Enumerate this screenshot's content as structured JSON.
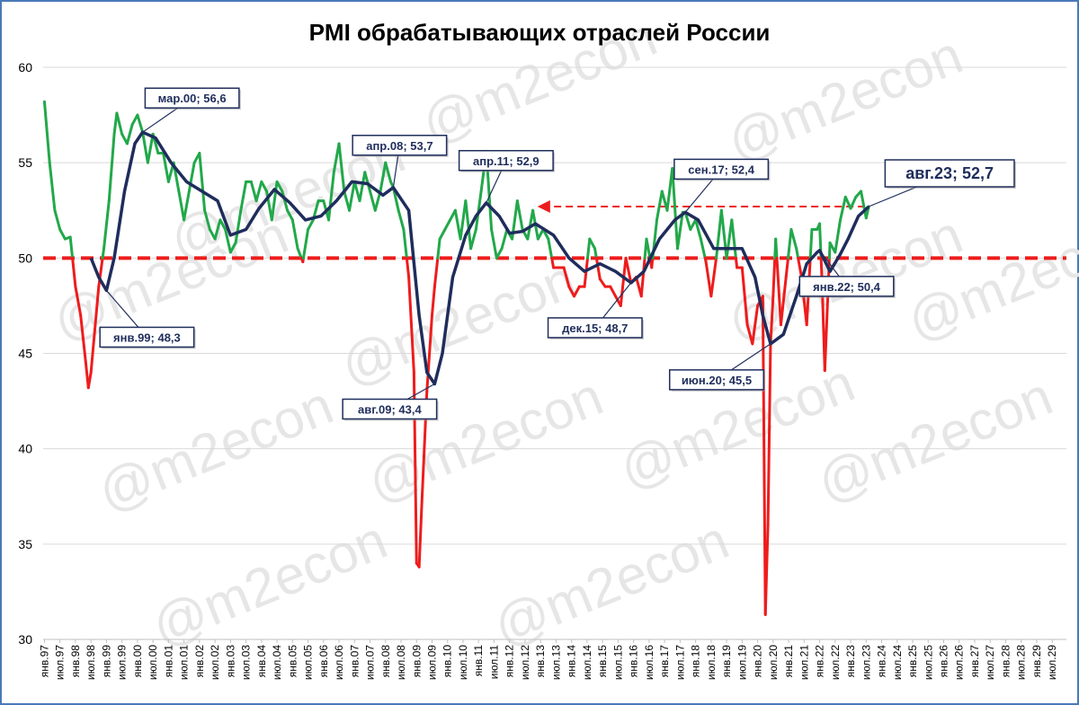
{
  "chart_data": {
    "type": "line",
    "title": "PMI обрабатывающих отраслей России",
    "watermark": "@m2econ",
    "ylim": [
      30,
      60
    ],
    "yticks": [
      30,
      35,
      40,
      45,
      50,
      55,
      60
    ],
    "x_range": [
      "1997-01",
      "2029-12"
    ],
    "xtick_labels": [
      "янв.97",
      "июл.97",
      "янв.98",
      "июл.98",
      "янв.99",
      "июл.99",
      "янв.00",
      "июл.00",
      "янв.01",
      "июл.01",
      "янв.02",
      "июл.02",
      "янв.03",
      "июл.03",
      "янв.04",
      "июл.04",
      "янв.05",
      "июл.05",
      "янв.06",
      "июл.06",
      "янв.07",
      "июл.07",
      "янв.08",
      "июл.08",
      "янв.09",
      "июл.09",
      "янв.10",
      "июл.10",
      "янв.11",
      "июл.11",
      "янв.12",
      "июл.12",
      "янв.13",
      "июл.13",
      "янв.14",
      "июл.14",
      "янв.15",
      "июл.15",
      "янв.16",
      "июл.16",
      "янв.17",
      "июл.17",
      "янв.18",
      "июл.18",
      "янв.19",
      "июл.19",
      "янв.20",
      "июл.20",
      "янв.21",
      "июл.21",
      "янв.22",
      "июл.22",
      "янв.23",
      "июл.23",
      "янв.24",
      "июл.24",
      "янв.25",
      "июл.25",
      "янв.26",
      "июл.26",
      "янв.27",
      "июл.27",
      "янв.28",
      "июл.28",
      "янв.29",
      "июл.29"
    ],
    "threshold": 50,
    "grid": true,
    "colors": {
      "above_50": "#22a84a",
      "below_50": "#ee1c1c",
      "trend": "#1f2d5c",
      "threshold": "#ee1c1c",
      "frame": "#4a79b8"
    },
    "series": [
      {
        "kind": "monthly_pmi",
        "points": [
          [
            "1997-01",
            58.2
          ],
          [
            "1997-03",
            55.0
          ],
          [
            "1997-05",
            52.5
          ],
          [
            "1997-07",
            51.5
          ],
          [
            "1997-09",
            51.0
          ],
          [
            "1997-11",
            51.1
          ],
          [
            "1998-01",
            48.5
          ],
          [
            "1998-03",
            47.0
          ],
          [
            "1998-05",
            44.5
          ],
          [
            "1998-06",
            43.2
          ],
          [
            "1998-07",
            44.0
          ],
          [
            "1998-08",
            45.5
          ],
          [
            "1998-10",
            48.5
          ],
          [
            "1998-12",
            50.5
          ],
          [
            "1999-02",
            53.0
          ],
          [
            "1999-04",
            56.5
          ],
          [
            "1999-05",
            57.6
          ],
          [
            "1999-07",
            56.5
          ],
          [
            "1999-09",
            56.0
          ],
          [
            "1999-11",
            57.0
          ],
          [
            "2000-01",
            57.5
          ],
          [
            "2000-03",
            56.6
          ],
          [
            "2000-05",
            55.0
          ],
          [
            "2000-07",
            56.5
          ],
          [
            "2000-09",
            55.5
          ],
          [
            "2000-11",
            55.5
          ],
          [
            "2001-01",
            54.0
          ],
          [
            "2001-03",
            55.0
          ],
          [
            "2001-05",
            53.5
          ],
          [
            "2001-07",
            52.0
          ],
          [
            "2001-09",
            53.5
          ],
          [
            "2001-11",
            55.0
          ],
          [
            "2002-01",
            55.5
          ],
          [
            "2002-03",
            52.5
          ],
          [
            "2002-05",
            51.5
          ],
          [
            "2002-07",
            51.0
          ],
          [
            "2002-09",
            52.0
          ],
          [
            "2002-11",
            51.5
          ],
          [
            "2003-01",
            50.3
          ],
          [
            "2003-03",
            50.8
          ],
          [
            "2003-05",
            52.5
          ],
          [
            "2003-07",
            54.0
          ],
          [
            "2003-09",
            54.0
          ],
          [
            "2003-11",
            53.0
          ],
          [
            "2004-01",
            54.0
          ],
          [
            "2004-03",
            53.5
          ],
          [
            "2004-05",
            52.0
          ],
          [
            "2004-07",
            54.0
          ],
          [
            "2004-09",
            53.5
          ],
          [
            "2004-11",
            52.5
          ],
          [
            "2005-01",
            52.0
          ],
          [
            "2005-03",
            50.5
          ],
          [
            "2005-05",
            49.8
          ],
          [
            "2005-07",
            51.5
          ],
          [
            "2005-09",
            52.0
          ],
          [
            "2005-11",
            53.0
          ],
          [
            "2006-01",
            53.0
          ],
          [
            "2006-03",
            52.0
          ],
          [
            "2006-05",
            54.5
          ],
          [
            "2006-07",
            56.0
          ],
          [
            "2006-09",
            53.5
          ],
          [
            "2006-11",
            52.5
          ],
          [
            "2007-01",
            54.0
          ],
          [
            "2007-03",
            53.0
          ],
          [
            "2007-05",
            54.5
          ],
          [
            "2007-07",
            53.5
          ],
          [
            "2007-09",
            52.5
          ],
          [
            "2007-11",
            53.5
          ],
          [
            "2008-01",
            55.0
          ],
          [
            "2008-03",
            54.0
          ],
          [
            "2008-04",
            53.7
          ],
          [
            "2008-06",
            52.5
          ],
          [
            "2008-08",
            51.5
          ],
          [
            "2008-10",
            49.0
          ],
          [
            "2008-12",
            44.0
          ],
          [
            "2009-01",
            34.0
          ],
          [
            "2009-02",
            33.8
          ],
          [
            "2009-03",
            37.0
          ],
          [
            "2009-05",
            43.0
          ],
          [
            "2009-07",
            47.0
          ],
          [
            "2009-08",
            48.5
          ],
          [
            "2009-10",
            51.0
          ],
          [
            "2009-12",
            51.5
          ],
          [
            "2010-02",
            52.0
          ],
          [
            "2010-04",
            52.5
          ],
          [
            "2010-06",
            51.0
          ],
          [
            "2010-08",
            53.0
          ],
          [
            "2010-10",
            50.5
          ],
          [
            "2010-12",
            51.5
          ],
          [
            "2011-02",
            53.5
          ],
          [
            "2011-04",
            55.6
          ],
          [
            "2011-06",
            51.5
          ],
          [
            "2011-08",
            50.0
          ],
          [
            "2011-10",
            50.5
          ],
          [
            "2011-12",
            51.5
          ],
          [
            "2012-02",
            51.0
          ],
          [
            "2012-04",
            53.0
          ],
          [
            "2012-06",
            51.5
          ],
          [
            "2012-08",
            51.0
          ],
          [
            "2012-10",
            52.5
          ],
          [
            "2012-12",
            51.0
          ],
          [
            "2013-02",
            51.5
          ],
          [
            "2013-04",
            51.0
          ],
          [
            "2013-06",
            49.5
          ],
          [
            "2013-08",
            49.5
          ],
          [
            "2013-10",
            49.5
          ],
          [
            "2013-12",
            48.5
          ],
          [
            "2014-02",
            48.0
          ],
          [
            "2014-04",
            48.5
          ],
          [
            "2014-06",
            48.5
          ],
          [
            "2014-08",
            51.0
          ],
          [
            "2014-10",
            50.5
          ],
          [
            "2014-12",
            48.9
          ],
          [
            "2015-02",
            48.5
          ],
          [
            "2015-04",
            48.5
          ],
          [
            "2015-06",
            48.0
          ],
          [
            "2015-08",
            47.5
          ],
          [
            "2015-10",
            50.0
          ],
          [
            "2015-12",
            48.7
          ],
          [
            "2016-02",
            49.0
          ],
          [
            "2016-04",
            48.0
          ],
          [
            "2016-06",
            51.0
          ],
          [
            "2016-08",
            49.5
          ],
          [
            "2016-10",
            52.0
          ],
          [
            "2016-12",
            53.5
          ],
          [
            "2017-02",
            52.5
          ],
          [
            "2017-04",
            54.7
          ],
          [
            "2017-06",
            50.5
          ],
          [
            "2017-08",
            52.4
          ],
          [
            "2017-09",
            52.4
          ],
          [
            "2017-11",
            51.5
          ],
          [
            "2018-01",
            52.0
          ],
          [
            "2018-03",
            51.0
          ],
          [
            "2018-05",
            49.8
          ],
          [
            "2018-07",
            48.0
          ],
          [
            "2018-09",
            50.0
          ],
          [
            "2018-11",
            52.5
          ],
          [
            "2019-01",
            50.0
          ],
          [
            "2019-03",
            52.0
          ],
          [
            "2019-05",
            49.5
          ],
          [
            "2019-07",
            49.5
          ],
          [
            "2019-09",
            46.5
          ],
          [
            "2019-11",
            45.5
          ],
          [
            "2020-01",
            47.5
          ],
          [
            "2020-03",
            48.0
          ],
          [
            "2020-04",
            31.3
          ],
          [
            "2020-05",
            36.0
          ],
          [
            "2020-06",
            45.5
          ],
          [
            "2020-07",
            48.0
          ],
          [
            "2020-08",
            51.0
          ],
          [
            "2020-10",
            46.5
          ],
          [
            "2020-12",
            49.0
          ],
          [
            "2021-02",
            51.5
          ],
          [
            "2021-04",
            50.5
          ],
          [
            "2021-06",
            49.0
          ],
          [
            "2021-08",
            46.5
          ],
          [
            "2021-10",
            51.5
          ],
          [
            "2021-12",
            51.5
          ],
          [
            "2022-01",
            51.8
          ],
          [
            "2022-02",
            48.5
          ],
          [
            "2022-03",
            44.1
          ],
          [
            "2022-05",
            50.8
          ],
          [
            "2022-07",
            50.3
          ],
          [
            "2022-09",
            52.0
          ],
          [
            "2022-11",
            53.2
          ],
          [
            "2023-01",
            52.6
          ],
          [
            "2023-03",
            53.2
          ],
          [
            "2023-05",
            53.5
          ],
          [
            "2023-07",
            52.1
          ],
          [
            "2023-08",
            52.7
          ]
        ]
      },
      {
        "kind": "trend",
        "points": [
          [
            "1998-07",
            50.0
          ],
          [
            "1998-10",
            49.0
          ],
          [
            "1999-01",
            48.3
          ],
          [
            "1999-04",
            50.0
          ],
          [
            "1999-08",
            53.5
          ],
          [
            "1999-12",
            56.0
          ],
          [
            "2000-03",
            56.6
          ],
          [
            "2000-08",
            56.3
          ],
          [
            "2001-02",
            55.0
          ],
          [
            "2001-08",
            54.0
          ],
          [
            "2002-02",
            53.5
          ],
          [
            "2002-08",
            53.0
          ],
          [
            "2003-01",
            51.2
          ],
          [
            "2003-07",
            51.5
          ],
          [
            "2003-12",
            52.6
          ],
          [
            "2004-06",
            53.6
          ],
          [
            "2004-12",
            52.9
          ],
          [
            "2005-06",
            52.0
          ],
          [
            "2005-12",
            52.2
          ],
          [
            "2006-06",
            53.0
          ],
          [
            "2006-12",
            54.0
          ],
          [
            "2007-06",
            53.9
          ],
          [
            "2007-12",
            53.3
          ],
          [
            "2008-04",
            53.7
          ],
          [
            "2008-10",
            52.5
          ],
          [
            "2009-02",
            47.0
          ],
          [
            "2009-05",
            44.0
          ],
          [
            "2009-08",
            43.4
          ],
          [
            "2009-11",
            45.0
          ],
          [
            "2010-03",
            49.0
          ],
          [
            "2010-08",
            51.2
          ],
          [
            "2010-12",
            52.2
          ],
          [
            "2011-04",
            52.9
          ],
          [
            "2011-09",
            52.2
          ],
          [
            "2012-01",
            51.3
          ],
          [
            "2012-06",
            51.4
          ],
          [
            "2012-11",
            51.8
          ],
          [
            "2013-06",
            51.2
          ],
          [
            "2013-12",
            50.0
          ],
          [
            "2014-06",
            49.3
          ],
          [
            "2014-12",
            49.7
          ],
          [
            "2015-06",
            49.3
          ],
          [
            "2015-12",
            48.7
          ],
          [
            "2016-05",
            49.3
          ],
          [
            "2016-11",
            51.0
          ],
          [
            "2017-05",
            52.0
          ],
          [
            "2017-09",
            52.4
          ],
          [
            "2018-02",
            52.0
          ],
          [
            "2018-08",
            50.5
          ],
          [
            "2019-01",
            50.5
          ],
          [
            "2019-07",
            50.5
          ],
          [
            "2019-12",
            49.0
          ],
          [
            "2020-03",
            47.0
          ],
          [
            "2020-06",
            45.5
          ],
          [
            "2020-11",
            46.0
          ],
          [
            "2021-04",
            48.0
          ],
          [
            "2021-08",
            49.7
          ],
          [
            "2021-12",
            50.3
          ],
          [
            "2022-01",
            50.4
          ],
          [
            "2022-05",
            49.3
          ],
          [
            "2022-09",
            50.2
          ],
          [
            "2022-12",
            51.0
          ],
          [
            "2023-04",
            52.2
          ],
          [
            "2023-08",
            52.7
          ]
        ]
      }
    ],
    "reference_arrow": {
      "from": "2023-08",
      "to": "2012-11",
      "y": 52.7
    },
    "annotations": [
      {
        "label": "мар.00; 56,6",
        "x": "2000-03",
        "y": 56.6,
        "big": false
      },
      {
        "label": "янв.99; 48,3",
        "x": "1999-01",
        "y": 48.3,
        "big": false
      },
      {
        "label": "апр.08; 53,7",
        "x": "2008-04",
        "y": 53.7,
        "big": false
      },
      {
        "label": "апр.11; 52,9",
        "x": "2011-04",
        "y": 52.9,
        "big": false
      },
      {
        "label": "авг.09; 43,4",
        "x": "2009-08",
        "y": 43.4,
        "big": false
      },
      {
        "label": "дек.15; 48,7",
        "x": "2015-12",
        "y": 48.7,
        "big": false
      },
      {
        "label": "сен.17; 52,4",
        "x": "2017-09",
        "y": 52.4,
        "big": false
      },
      {
        "label": "июн.20; 45,5",
        "x": "2020-06",
        "y": 45.5,
        "big": false
      },
      {
        "label": "янв.22; 50,4",
        "x": "2022-01",
        "y": 50.4,
        "big": false
      },
      {
        "label": "авг.23; 52,7",
        "x": "2023-08",
        "y": 52.7,
        "big": true
      }
    ]
  }
}
